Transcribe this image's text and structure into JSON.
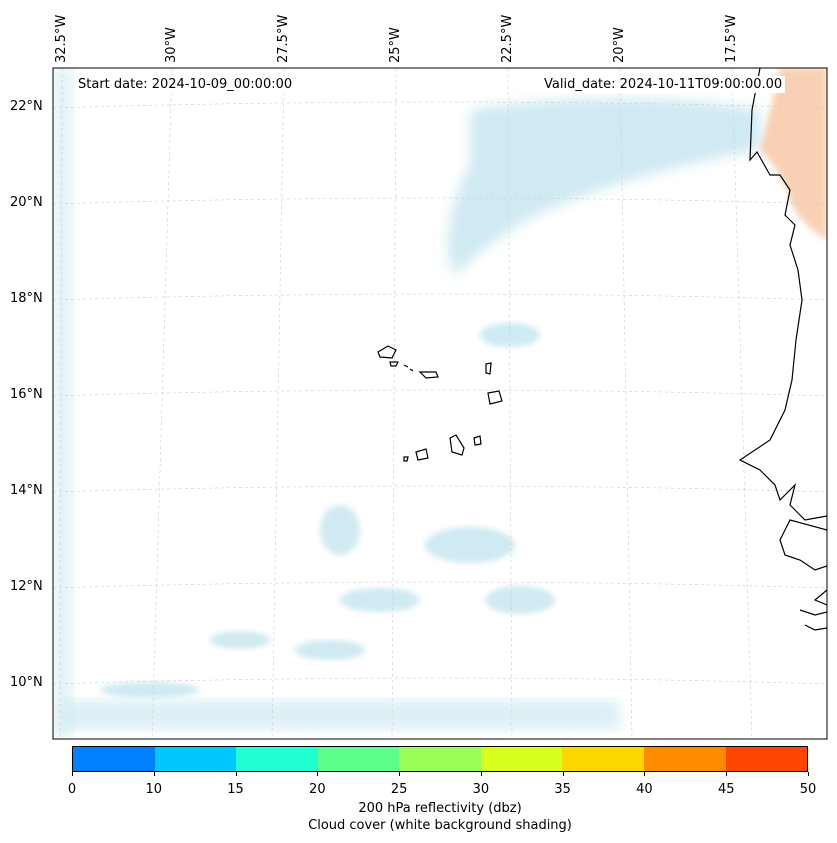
{
  "map": {
    "start_date": "Start date: 2024-10-09_00:00:00",
    "valid_date": "Valid_date: 2024-10-11T09:00:00.00",
    "lon_labels": [
      "32.5°W",
      "30°W",
      "27.5°W",
      "25°W",
      "22.5°W",
      "20°W",
      "17.5°W"
    ],
    "lat_labels": [
      "22°N",
      "20°N",
      "18°N",
      "16°N",
      "14°N",
      "12°N",
      "10°N"
    ]
  },
  "colorbar": {
    "ticks": [
      "0",
      "10",
      "15",
      "20",
      "25",
      "30",
      "35",
      "40",
      "45",
      "50"
    ],
    "colors": [
      "#0080ff",
      "#00c8ff",
      "#21ffd2",
      "#5cff8a",
      "#99ff57",
      "#d7ff1f",
      "#ffd700",
      "#ff8c00",
      "#ff4500"
    ],
    "label_line1": "200 hPa reflectivity (dbz)",
    "label_line2": "Cloud cover (white background shading)"
  }
}
